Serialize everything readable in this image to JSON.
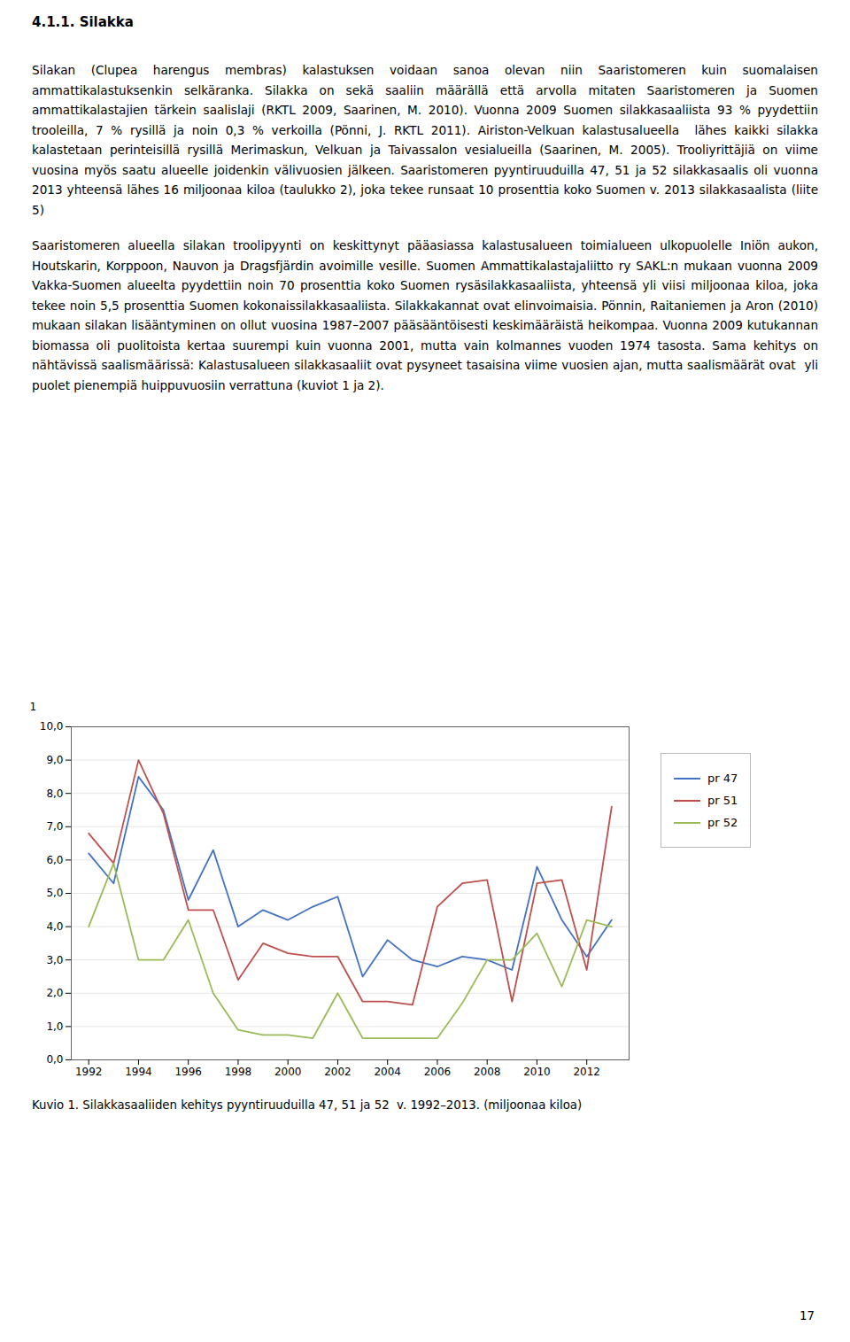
{
  "heading": "4.1.1. Silakka",
  "paragraphs": [
    "Silakan (Clupea harengus membras) kalastuksen voidaan sanoa olevan niin Saaristomeren kuin suomalaisen ammattikalastuksenkin selkäranka. Silakka on sekä saaliin määrällä että arvolla mitaten Saaristomeren ja Suomen ammattikalastajien tärkein saalislaji (RKTL 2009, Saarinen, M. 2010). Vuonna 2009 Suomen silakkasaaliista 93 % pyydettiin trooleilla, 7 % rysillä ja noin 0,3 % verkoilla (Pönni, J. RKTL 2011). Airiston-Velkuan kalastusalueella  lähes kaikki silakka kalastetaan perinteisillä rysillä Merimaskun, Velkuan ja Taivassalon vesialueilla (Saarinen, M. 2005). Trooliyrittäjiä on viime vuosina myös saatu alueelle joidenkin välivuosien jälkeen. Saaristomeren pyyntiruuduilla 47, 51 ja 52 silakkasaalis oli vuonna 2013 yhteensä lähes 16 miljoonaa kiloa (taulukko 2), joka tekee runsaat 10 prosenttia koko Suomen v. 2013 silakkasaalista (liite 5)",
    "Saaristomeren alueella silakan troolipyynti on keskittynyt pääasiassa kalastusalueen toimialueen ulkopuolelle Iniön aukon, Houtskarin, Korppoon, Nauvon ja Dragsfjärdin avoimille vesille. Suomen Ammattikalastajaliitto ry SAKL:n mukaan vuonna 2009 Vakka-Suomen alueelta pyydettiin noin 70 prosenttia koko Suomen rysäsilakkasaaliista, yhteensä yli viisi miljoonaa kiloa, joka tekee noin 5,5 prosenttia Suomen kokonaissilakkasaaliista. Silakkakannat ovat elinvoimaisia. Pönnin, Raitaniemen ja Aron (2010) mukaan silakan lisääntyminen on ollut vuosina 1987–2007 pääsääntöisesti keskimääräistä heikompaa. Vuonna 2009 kutukannan biomassa oli puolitoista kertaa suurempi kuin vuonna 2001, mutta vain kolmannes vuoden 1974 tasosta. Sama kehitys on nähtävissä saalismäärissä: Kalastusalueen silakkasaaliit ovat pysyneet tasaisina viime vuosien ajan, mutta saalismäärät ovat  yli puolet pienempiä huippuvuosiin verrattuna (kuviot 1 ja 2)."
  ],
  "page_number": "17",
  "chart_data": {
    "type": "line",
    "caption": "Kuvio 1. Silakkasaaliiden kehitys pyyntiruuduilla 47, 51 ja 52  v. 1992–2013. (miljoonaa kiloa)",
    "ylabel": "1",
    "x": [
      1992,
      1993,
      1994,
      1995,
      1996,
      1997,
      1998,
      1999,
      2000,
      2001,
      2002,
      2003,
      2004,
      2005,
      2006,
      2007,
      2008,
      2009,
      2010,
      2011,
      2012,
      2013
    ],
    "series": [
      {
        "name": "pr 47",
        "color": "#4472C4",
        "values": [
          6.2,
          5.3,
          8.5,
          7.5,
          4.8,
          6.3,
          4.0,
          4.5,
          4.2,
          4.6,
          4.9,
          2.5,
          3.6,
          3.0,
          2.8,
          3.1,
          3.0,
          2.7,
          5.8,
          4.2,
          3.1,
          4.2
        ]
      },
      {
        "name": "pr 51",
        "color": "#C0504D",
        "values": [
          6.8,
          5.9,
          9.0,
          7.4,
          4.5,
          4.5,
          2.4,
          3.5,
          3.2,
          3.1,
          3.1,
          1.75,
          1.75,
          1.65,
          4.6,
          5.3,
          5.4,
          1.75,
          5.3,
          5.4,
          2.7,
          7.6
        ]
      },
      {
        "name": "pr 52",
        "color": "#9BBB59",
        "values": [
          4.0,
          5.9,
          3.0,
          3.0,
          4.2,
          2.0,
          0.9,
          0.75,
          0.75,
          0.65,
          2.0,
          0.65,
          0.65,
          0.65,
          0.65,
          1.7,
          3.0,
          3.0,
          3.8,
          2.2,
          4.2,
          4.0
        ]
      }
    ],
    "xlim": [
      1991.3,
      2013.7
    ],
    "xticks": [
      1992,
      1994,
      1996,
      1998,
      2000,
      2002,
      2004,
      2006,
      2008,
      2010,
      2012
    ],
    "ylim": [
      0.0,
      10.0
    ],
    "yticks": [
      {
        "value": 0.0,
        "label": "0,0"
      },
      {
        "value": 1.0,
        "label": "1,0"
      },
      {
        "value": 2.0,
        "label": "2,0"
      },
      {
        "value": 3.0,
        "label": "3,0"
      },
      {
        "value": 4.0,
        "label": "4,0"
      },
      {
        "value": 5.0,
        "label": "5,0"
      },
      {
        "value": 6.0,
        "label": "6,0"
      },
      {
        "value": 7.0,
        "label": "7,0"
      },
      {
        "value": 8.0,
        "label": "8,0"
      },
      {
        "value": 9.0,
        "label": "9,0"
      },
      {
        "value": 10.0,
        "label": "10,0"
      }
    ],
    "grid": true,
    "legend": "right"
  }
}
